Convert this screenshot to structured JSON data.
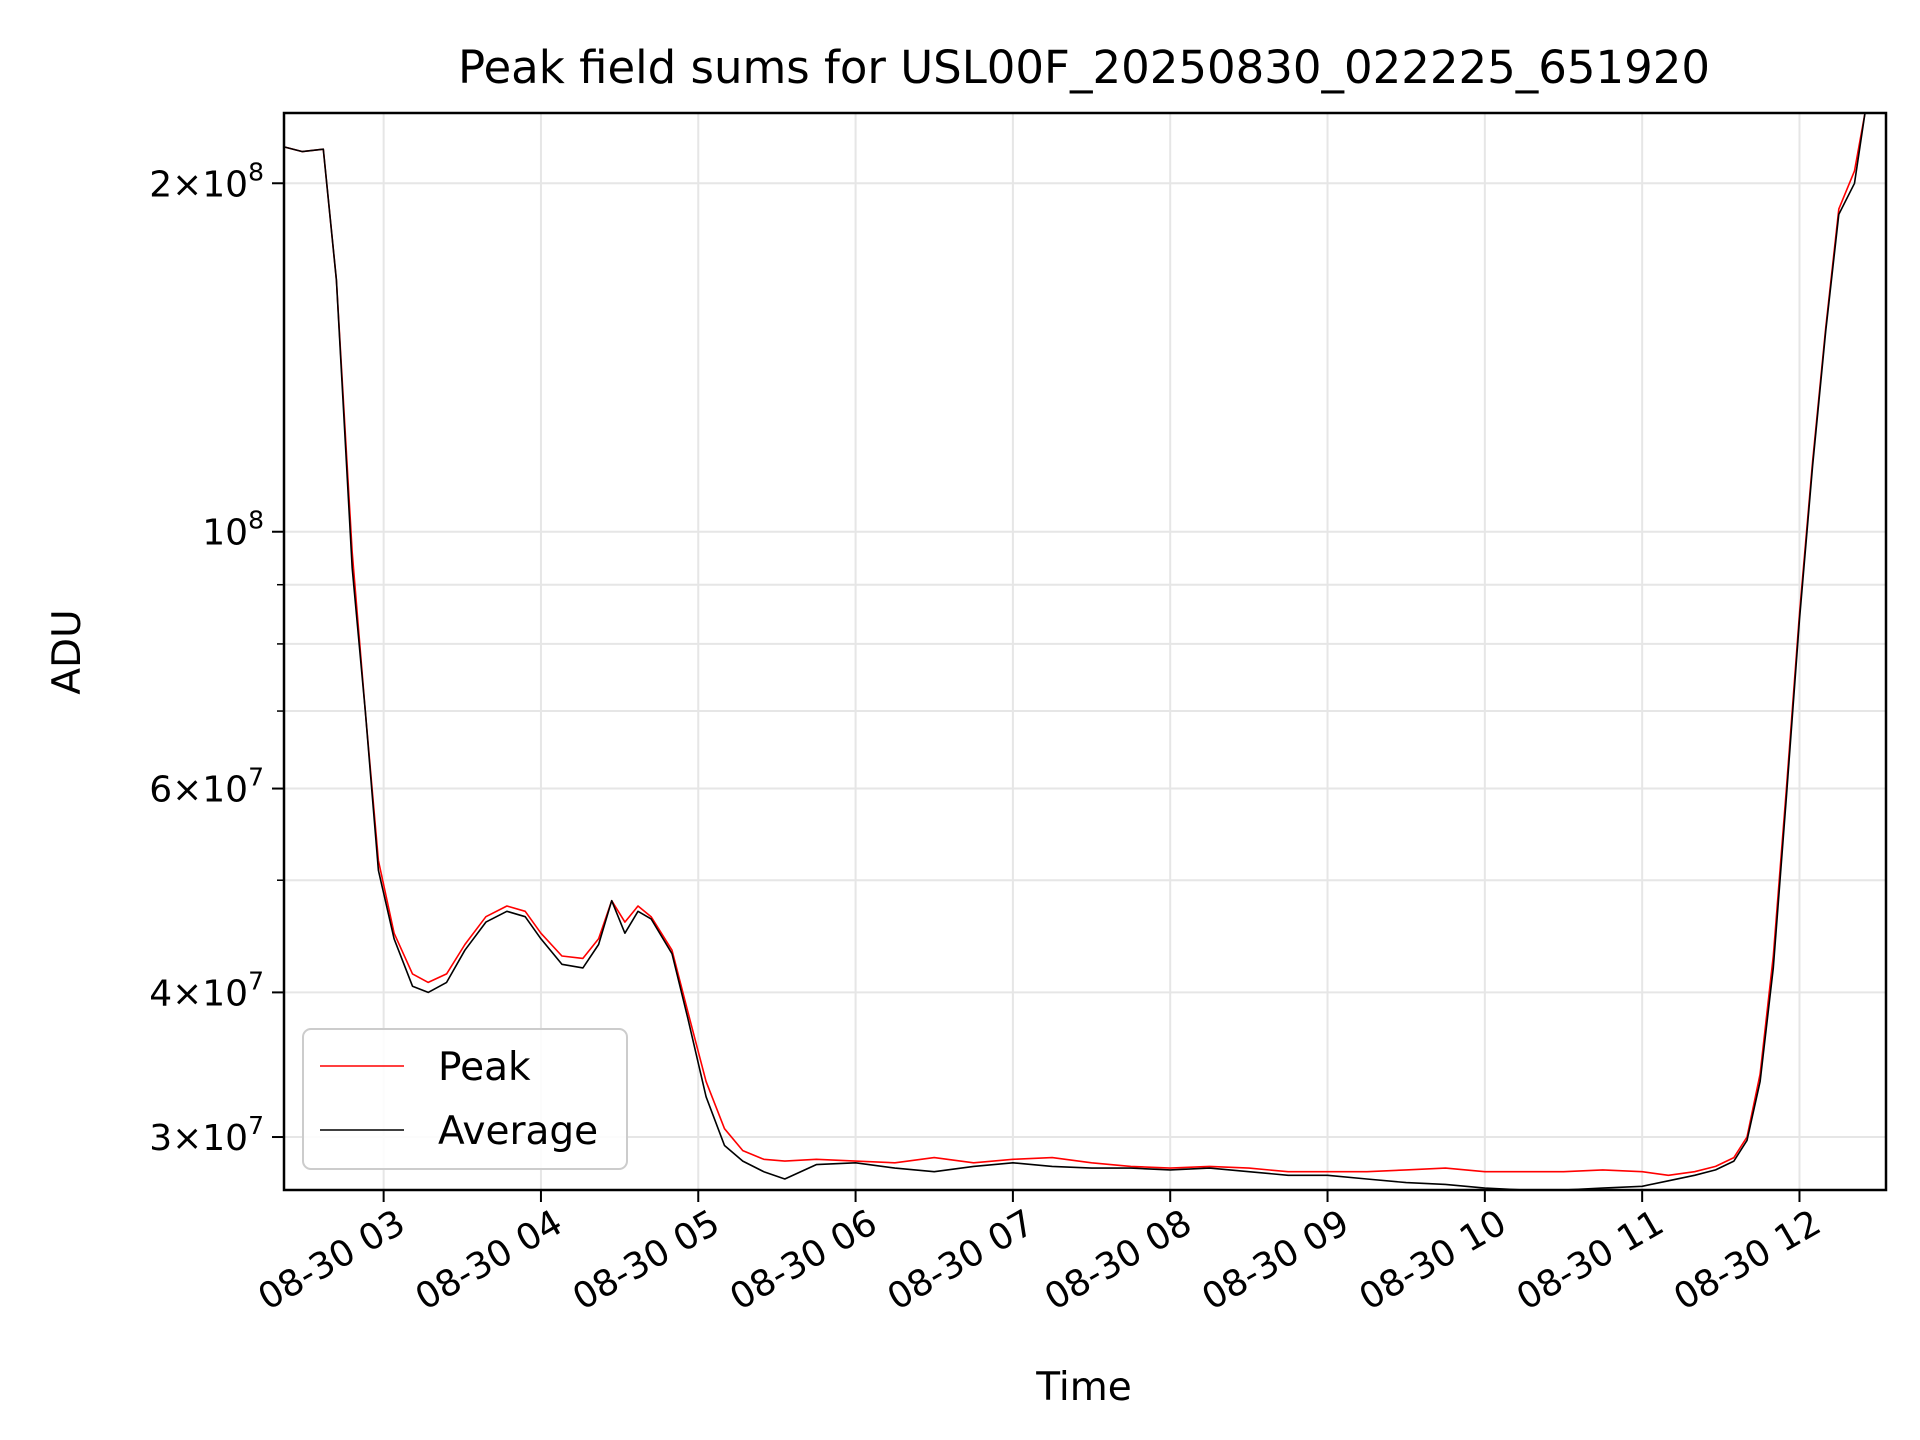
{
  "chart_data": {
    "type": "line",
    "title": "Peak field sums for USL00F_20250830_022225_651920",
    "xlabel": "Time",
    "ylabel": "ADU",
    "yscale": "log",
    "xlim": [
      "2025-08-30 02:22",
      "2025-08-30 12:33"
    ],
    "ylim": [
      27000000,
      230000000
    ],
    "grid": true,
    "legend": "lower-left",
    "x_ticks": [
      "08-30 03",
      "08-30 04",
      "08-30 05",
      "08-30 06",
      "08-30 07",
      "08-30 08",
      "08-30 09",
      "08-30 10",
      "08-30 11",
      "08-30 12"
    ],
    "y_ticks": [
      {
        "value": 30000000,
        "mantissa": "3",
        "exponent": "7"
      },
      {
        "value": 40000000,
        "mantissa": "4",
        "exponent": "7"
      },
      {
        "value": 60000000,
        "mantissa": "6",
        "exponent": "7"
      },
      {
        "value": 100000000,
        "mantissa": "",
        "exponent": "8"
      },
      {
        "value": 200000000,
        "mantissa": "2",
        "exponent": "8"
      }
    ],
    "y_minor_ticks": [
      50000000,
      70000000,
      80000000,
      90000000
    ],
    "series": [
      {
        "name": "Peak",
        "color": "#ff0000",
        "points": [
          [
            "2025-08-30 02:22",
            215000000
          ],
          [
            "2025-08-30 02:29",
            213000000
          ],
          [
            "2025-08-30 02:37",
            214000000
          ],
          [
            "2025-08-30 02:42",
            165000000
          ],
          [
            "2025-08-30 02:48",
            96000000
          ],
          [
            "2025-08-30 02:53",
            70000000
          ],
          [
            "2025-08-30 02:58",
            52000000
          ],
          [
            "2025-08-30 03:04",
            45000000
          ],
          [
            "2025-08-30 03:11",
            41500000
          ],
          [
            "2025-08-30 03:17",
            40800000
          ],
          [
            "2025-08-30 03:24",
            41500000
          ],
          [
            "2025-08-30 03:31",
            44000000
          ],
          [
            "2025-08-30 03:39",
            46500000
          ],
          [
            "2025-08-30 03:47",
            47500000
          ],
          [
            "2025-08-30 03:54",
            47000000
          ],
          [
            "2025-08-30 04:00",
            45000000
          ],
          [
            "2025-08-30 04:08",
            43000000
          ],
          [
            "2025-08-30 04:16",
            42800000
          ],
          [
            "2025-08-30 04:22",
            44500000
          ],
          [
            "2025-08-30 04:27",
            48000000
          ],
          [
            "2025-08-30 04:32",
            46000000
          ],
          [
            "2025-08-30 04:37",
            47500000
          ],
          [
            "2025-08-30 04:42",
            46500000
          ],
          [
            "2025-08-30 04:50",
            43500000
          ],
          [
            "2025-08-30 04:56",
            38500000
          ],
          [
            "2025-08-30 05:03",
            33500000
          ],
          [
            "2025-08-30 05:10",
            30500000
          ],
          [
            "2025-08-30 05:17",
            29200000
          ],
          [
            "2025-08-30 05:25",
            28700000
          ],
          [
            "2025-08-30 05:33",
            28600000
          ],
          [
            "2025-08-30 05:45",
            28700000
          ],
          [
            "2025-08-30 06:00",
            28600000
          ],
          [
            "2025-08-30 06:15",
            28500000
          ],
          [
            "2025-08-30 06:30",
            28800000
          ],
          [
            "2025-08-30 06:45",
            28500000
          ],
          [
            "2025-08-30 07:00",
            28700000
          ],
          [
            "2025-08-30 07:15",
            28800000
          ],
          [
            "2025-08-30 07:30",
            28500000
          ],
          [
            "2025-08-30 07:45",
            28300000
          ],
          [
            "2025-08-30 08:00",
            28200000
          ],
          [
            "2025-08-30 08:15",
            28300000
          ],
          [
            "2025-08-30 08:30",
            28200000
          ],
          [
            "2025-08-30 08:45",
            28000000
          ],
          [
            "2025-08-30 09:00",
            28000000
          ],
          [
            "2025-08-30 09:15",
            28000000
          ],
          [
            "2025-08-30 09:30",
            28100000
          ],
          [
            "2025-08-30 09:45",
            28200000
          ],
          [
            "2025-08-30 10:00",
            28000000
          ],
          [
            "2025-08-30 10:15",
            28000000
          ],
          [
            "2025-08-30 10:30",
            28000000
          ],
          [
            "2025-08-30 10:45",
            28100000
          ],
          [
            "2025-08-30 11:00",
            28000000
          ],
          [
            "2025-08-30 11:10",
            27800000
          ],
          [
            "2025-08-30 11:20",
            28000000
          ],
          [
            "2025-08-30 11:28",
            28300000
          ],
          [
            "2025-08-30 11:35",
            28800000
          ],
          [
            "2025-08-30 11:40",
            30000000
          ],
          [
            "2025-08-30 11:45",
            34000000
          ],
          [
            "2025-08-30 11:50",
            43000000
          ],
          [
            "2025-08-30 11:55",
            60000000
          ],
          [
            "2025-08-30 12:00",
            85000000
          ],
          [
            "2025-08-30 12:05",
            115000000
          ],
          [
            "2025-08-30 12:10",
            150000000
          ],
          [
            "2025-08-30 12:15",
            190000000
          ],
          [
            "2025-08-30 12:21",
            205000000
          ],
          [
            "2025-08-30 12:25",
            230000000
          ]
        ]
      },
      {
        "name": "Average",
        "color": "#000000",
        "points": [
          [
            "2025-08-30 02:22",
            215000000
          ],
          [
            "2025-08-30 02:29",
            213000000
          ],
          [
            "2025-08-30 02:37",
            214000000
          ],
          [
            "2025-08-30 02:42",
            165000000
          ],
          [
            "2025-08-30 02:48",
            93000000
          ],
          [
            "2025-08-30 02:53",
            70000000
          ],
          [
            "2025-08-30 02:58",
            51000000
          ],
          [
            "2025-08-30 03:04",
            44500000
          ],
          [
            "2025-08-30 03:11",
            40500000
          ],
          [
            "2025-08-30 03:17",
            40000000
          ],
          [
            "2025-08-30 03:24",
            40800000
          ],
          [
            "2025-08-30 03:31",
            43500000
          ],
          [
            "2025-08-30 03:39",
            46000000
          ],
          [
            "2025-08-30 03:47",
            47000000
          ],
          [
            "2025-08-30 03:54",
            46500000
          ],
          [
            "2025-08-30 04:00",
            44500000
          ],
          [
            "2025-08-30 04:08",
            42300000
          ],
          [
            "2025-08-30 04:16",
            42000000
          ],
          [
            "2025-08-30 04:22",
            44000000
          ],
          [
            "2025-08-30 04:27",
            48000000
          ],
          [
            "2025-08-30 04:32",
            45000000
          ],
          [
            "2025-08-30 04:37",
            47000000
          ],
          [
            "2025-08-30 04:42",
            46300000
          ],
          [
            "2025-08-30 04:50",
            43200000
          ],
          [
            "2025-08-30 04:56",
            38000000
          ],
          [
            "2025-08-30 05:03",
            32500000
          ],
          [
            "2025-08-30 05:10",
            29500000
          ],
          [
            "2025-08-30 05:17",
            28600000
          ],
          [
            "2025-08-30 05:25",
            28000000
          ],
          [
            "2025-08-30 05:33",
            27600000
          ],
          [
            "2025-08-30 05:45",
            28400000
          ],
          [
            "2025-08-30 06:00",
            28500000
          ],
          [
            "2025-08-30 06:15",
            28200000
          ],
          [
            "2025-08-30 06:30",
            28000000
          ],
          [
            "2025-08-30 06:45",
            28300000
          ],
          [
            "2025-08-30 07:00",
            28500000
          ],
          [
            "2025-08-30 07:15",
            28300000
          ],
          [
            "2025-08-30 07:30",
            28200000
          ],
          [
            "2025-08-30 07:45",
            28200000
          ],
          [
            "2025-08-30 08:00",
            28100000
          ],
          [
            "2025-08-30 08:15",
            28200000
          ],
          [
            "2025-08-30 08:30",
            28000000
          ],
          [
            "2025-08-30 08:45",
            27800000
          ],
          [
            "2025-08-30 09:00",
            27800000
          ],
          [
            "2025-08-30 09:15",
            27600000
          ],
          [
            "2025-08-30 09:30",
            27400000
          ],
          [
            "2025-08-30 09:45",
            27300000
          ],
          [
            "2025-08-30 10:00",
            27100000
          ],
          [
            "2025-08-30 10:15",
            27000000
          ],
          [
            "2025-08-30 10:30",
            27000000
          ],
          [
            "2025-08-30 10:45",
            27100000
          ],
          [
            "2025-08-30 11:00",
            27200000
          ],
          [
            "2025-08-30 11:10",
            27500000
          ],
          [
            "2025-08-30 11:20",
            27800000
          ],
          [
            "2025-08-30 11:28",
            28100000
          ],
          [
            "2025-08-30 11:35",
            28600000
          ],
          [
            "2025-08-30 11:40",
            29800000
          ],
          [
            "2025-08-30 11:45",
            33500000
          ],
          [
            "2025-08-30 11:50",
            42000000
          ],
          [
            "2025-08-30 11:55",
            59000000
          ],
          [
            "2025-08-30 12:00",
            84000000
          ],
          [
            "2025-08-30 12:05",
            114000000
          ],
          [
            "2025-08-30 12:10",
            149000000
          ],
          [
            "2025-08-30 12:15",
            188000000
          ],
          [
            "2025-08-30 12:21",
            200000000
          ],
          [
            "2025-08-30 12:25",
            230000000
          ]
        ]
      }
    ]
  }
}
